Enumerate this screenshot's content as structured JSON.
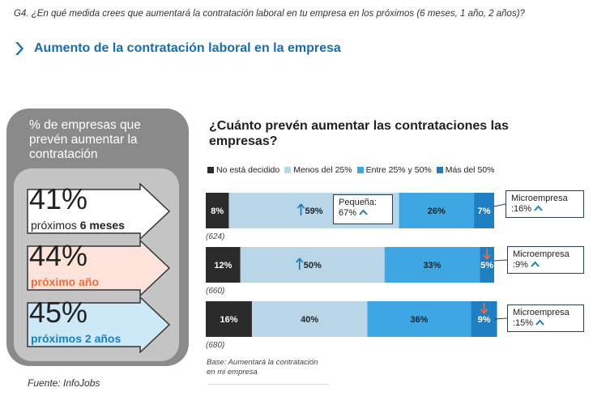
{
  "question": "G4. ¿En qué medida crees que aumentará la contratación laboral en tu empresa en los próximos (6 meses, 1 año, 2 años)?",
  "section_title": "Aumento de la contratación laboral en la empresa",
  "left_panel": {
    "title": "% de empresas que prevén aumentar la contratación",
    "items": [
      {
        "pct": "41%",
        "label_prefix": "próximos ",
        "label_bold": "6 meses",
        "fill": "#ffffff",
        "label_color": "#222222"
      },
      {
        "pct": "44%",
        "label_prefix": "",
        "label_bold": "próximo año",
        "fill": "#fde3da",
        "label_color": "#f26b3a"
      },
      {
        "pct": "45%",
        "label_prefix": "",
        "label_bold": "próximos 2 años",
        "fill": "#cde8f7",
        "label_color": "#1a7fc1"
      }
    ]
  },
  "source": "Fuente: InfoJobs",
  "chart_data": {
    "type": "bar",
    "orientation": "horizontal",
    "stacked": true,
    "title": "¿Cuánto prevén aumentar las contrataciones las empresas?",
    "categories": [
      "próximos 6 meses",
      "próximo año",
      "próximos 2 años"
    ],
    "bases": [
      "(624)",
      "(660)",
      "(680)"
    ],
    "series": [
      {
        "name": "No está decidido",
        "color": "#2b2b2b",
        "label_color": "#ffffff",
        "values": [
          8,
          12,
          16
        ]
      },
      {
        "name": "Menos del 25%",
        "color": "#b9d6e8",
        "label_color": "#222222",
        "values": [
          59,
          50,
          40
        ]
      },
      {
        "name": "Entre 25% y 50%",
        "color": "#3ea6e3",
        "label_color": "#222222",
        "values": [
          26,
          33,
          36
        ]
      },
      {
        "name": "Más del 50%",
        "color": "#1f7fc2",
        "label_color": "#ffffff",
        "values": [
          7,
          5,
          9
        ]
      }
    ],
    "trend_markers": [
      {
        "row": 0,
        "series": 1,
        "direction": "up",
        "color": "#1a7fc1"
      },
      {
        "row": 1,
        "series": 1,
        "direction": "up",
        "color": "#1a7fc1"
      },
      {
        "row": 1,
        "series": 3,
        "direction": "down",
        "color": "#f26b3a"
      },
      {
        "row": 2,
        "series": 3,
        "direction": "down",
        "color": "#f26b3a"
      }
    ],
    "annotations": [
      {
        "text": "Pequeña: 67%",
        "row": 0,
        "position": "inside-right-of-segment-2",
        "line1": "Pequeña:",
        "line2": "67%"
      },
      {
        "text": "Microempresa :16%",
        "row": 0,
        "position": "right",
        "line1": "Microempresa",
        "line2": ":16%"
      },
      {
        "text": "Microempresa :9%",
        "row": 1,
        "position": "right",
        "line1": "Microempresa",
        "line2": ":9%"
      },
      {
        "text": "Microempresa :15%",
        "row": 2,
        "position": "right",
        "line1": "Microempresa",
        "line2": ":15%"
      }
    ],
    "base_note": "Base: Aumentará la contratación en mi empresa",
    "xlim": [
      0,
      100
    ]
  },
  "colors": {
    "accent": "#1a6ea8",
    "panel_dark": "#8a8a8a",
    "panel_light": "#c4c4c4",
    "up": "#1a7fc1",
    "down": "#f26b3a"
  }
}
